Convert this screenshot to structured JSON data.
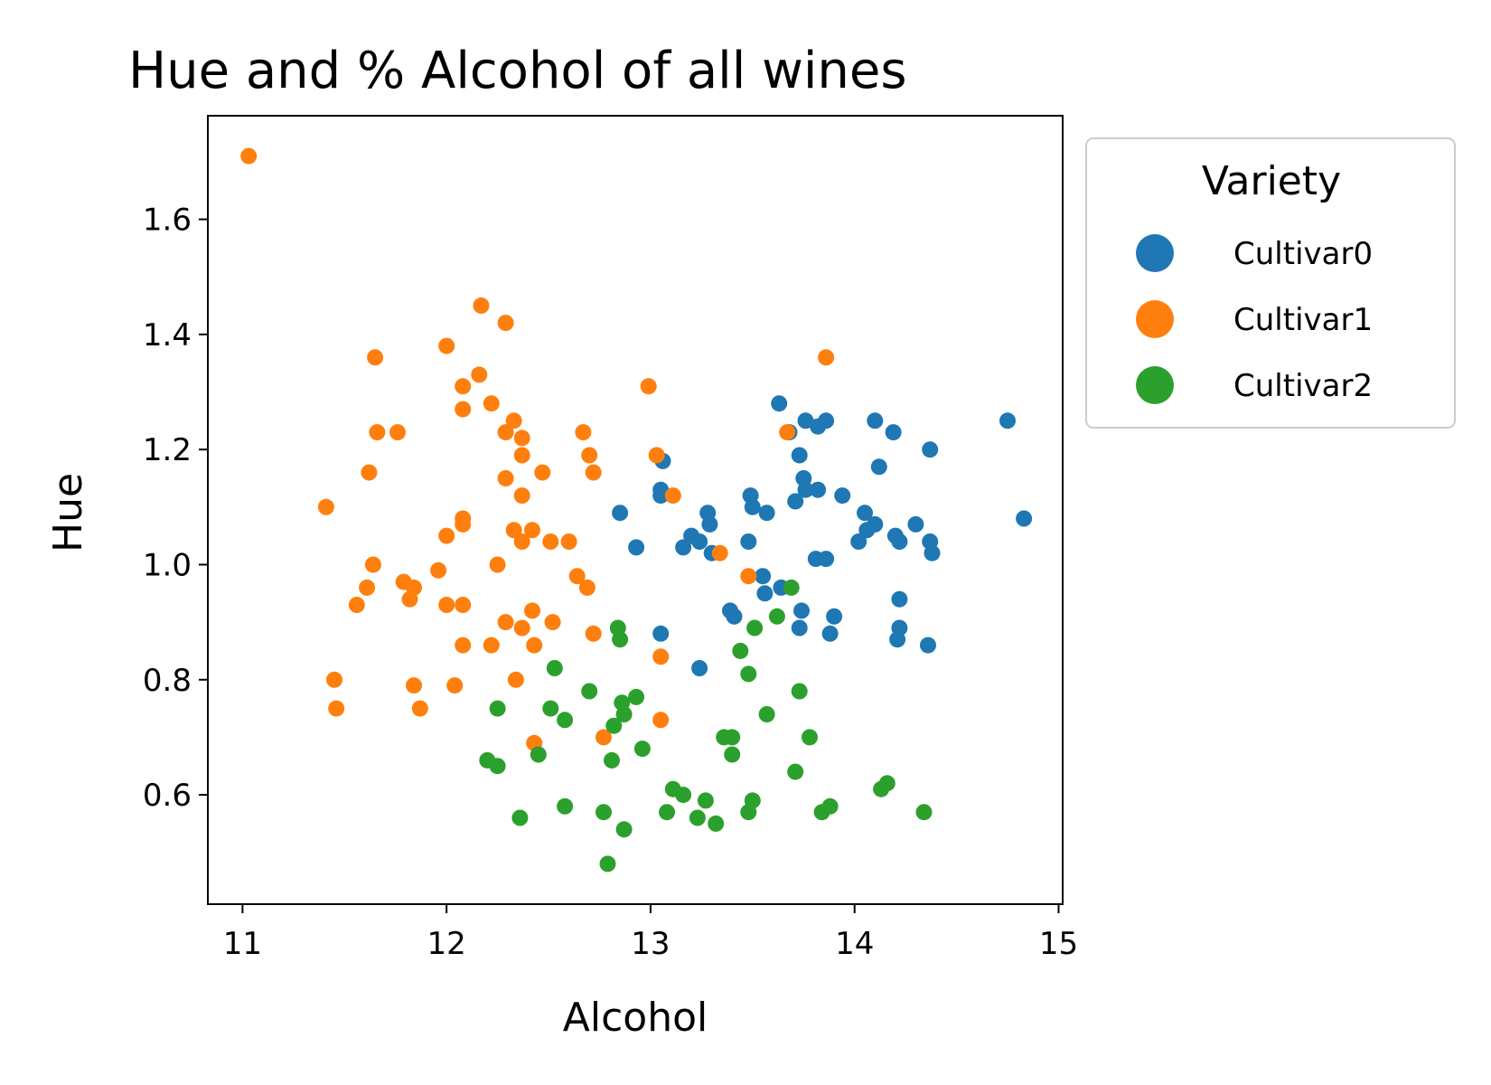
{
  "chart_data": {
    "type": "scatter",
    "title": "Hue and % Alcohol of all wines",
    "xlabel": "Alcohol",
    "ylabel": "Hue",
    "xlim": [
      10.83,
      15.02
    ],
    "ylim": [
      0.41,
      1.78
    ],
    "xticks": [
      11,
      12,
      13,
      14,
      15
    ],
    "yticks": [
      0.6,
      0.8,
      1.0,
      1.2,
      1.4,
      1.6
    ],
    "xtick_labels": [
      "11",
      "12",
      "13",
      "14",
      "15"
    ],
    "ytick_labels": [
      "0.6",
      "0.8",
      "1.0",
      "1.2",
      "1.4",
      "1.6"
    ],
    "grid": false,
    "legend": {
      "title": "Variety",
      "placement": "outside-right-top"
    },
    "series": [
      {
        "name": "Cultivar0",
        "color": "#1f77b4",
        "points": [
          [
            13.06,
            1.18
          ],
          [
            13.05,
            1.13
          ],
          [
            13.05,
            1.12
          ],
          [
            12.85,
            1.09
          ],
          [
            12.93,
            1.03
          ],
          [
            13.16,
            1.03
          ],
          [
            13.2,
            1.05
          ],
          [
            13.24,
            1.04
          ],
          [
            13.28,
            1.09
          ],
          [
            13.29,
            1.07
          ],
          [
            13.3,
            1.02
          ],
          [
            13.48,
            1.04
          ],
          [
            13.49,
            1.12
          ],
          [
            13.5,
            1.1
          ],
          [
            13.57,
            1.09
          ],
          [
            13.63,
            1.28
          ],
          [
            13.68,
            1.23
          ],
          [
            13.73,
            1.19
          ],
          [
            13.71,
            1.11
          ],
          [
            13.75,
            1.15
          ],
          [
            13.76,
            1.13
          ],
          [
            13.76,
            1.25
          ],
          [
            13.82,
            1.24
          ],
          [
            13.82,
            1.13
          ],
          [
            13.86,
            1.25
          ],
          [
            13.94,
            1.12
          ],
          [
            13.81,
            1.01
          ],
          [
            13.86,
            1.01
          ],
          [
            14.02,
            1.04
          ],
          [
            14.05,
            1.09
          ],
          [
            14.06,
            1.06
          ],
          [
            14.1,
            1.07
          ],
          [
            14.1,
            1.25
          ],
          [
            14.12,
            1.17
          ],
          [
            14.19,
            1.23
          ],
          [
            14.2,
            1.05
          ],
          [
            14.22,
            1.04
          ],
          [
            14.3,
            1.07
          ],
          [
            14.37,
            1.04
          ],
          [
            14.38,
            1.02
          ],
          [
            14.37,
            1.2
          ],
          [
            14.75,
            1.25
          ],
          [
            14.83,
            1.08
          ],
          [
            13.39,
            0.92
          ],
          [
            13.41,
            0.91
          ],
          [
            13.55,
            0.98
          ],
          [
            13.56,
            0.95
          ],
          [
            13.64,
            0.96
          ],
          [
            13.74,
            0.92
          ],
          [
            13.73,
            0.89
          ],
          [
            13.88,
            0.88
          ],
          [
            13.9,
            0.91
          ],
          [
            14.22,
            0.94
          ],
          [
            14.22,
            0.89
          ],
          [
            14.21,
            0.87
          ],
          [
            14.36,
            0.86
          ],
          [
            13.05,
            0.88
          ],
          [
            13.24,
            0.82
          ]
        ]
      },
      {
        "name": "Cultivar1",
        "color": "#ff7f0e",
        "points": [
          [
            11.03,
            1.71
          ],
          [
            12.17,
            1.45
          ],
          [
            12.29,
            1.42
          ],
          [
            11.65,
            1.36
          ],
          [
            12.0,
            1.38
          ],
          [
            12.16,
            1.33
          ],
          [
            12.08,
            1.31
          ],
          [
            12.08,
            1.27
          ],
          [
            12.22,
            1.28
          ],
          [
            12.99,
            1.31
          ],
          [
            13.86,
            1.36
          ],
          [
            11.66,
            1.23
          ],
          [
            11.76,
            1.23
          ],
          [
            12.29,
            1.23
          ],
          [
            12.33,
            1.25
          ],
          [
            12.37,
            1.22
          ],
          [
            12.37,
            1.19
          ],
          [
            11.62,
            1.16
          ],
          [
            12.29,
            1.15
          ],
          [
            12.47,
            1.16
          ],
          [
            12.67,
            1.23
          ],
          [
            12.7,
            1.19
          ],
          [
            12.72,
            1.16
          ],
          [
            13.03,
            1.19
          ],
          [
            13.67,
            1.23
          ],
          [
            11.41,
            1.1
          ],
          [
            12.37,
            1.12
          ],
          [
            13.11,
            1.12
          ],
          [
            12.08,
            1.08
          ],
          [
            12.08,
            1.07
          ],
          [
            12.0,
            1.05
          ],
          [
            12.33,
            1.06
          ],
          [
            12.42,
            1.06
          ],
          [
            12.37,
            1.04
          ],
          [
            12.51,
            1.04
          ],
          [
            12.6,
            1.04
          ],
          [
            13.34,
            1.02
          ],
          [
            11.64,
            1.0
          ],
          [
            12.25,
            1.0
          ],
          [
            11.96,
            0.99
          ],
          [
            12.64,
            0.98
          ],
          [
            12.69,
            0.96
          ],
          [
            11.61,
            0.96
          ],
          [
            11.79,
            0.97
          ],
          [
            11.84,
            0.96
          ],
          [
            11.82,
            0.94
          ],
          [
            11.56,
            0.93
          ],
          [
            12.0,
            0.93
          ],
          [
            12.08,
            0.93
          ],
          [
            12.42,
            0.92
          ],
          [
            12.29,
            0.9
          ],
          [
            12.37,
            0.89
          ],
          [
            12.52,
            0.9
          ],
          [
            12.72,
            0.88
          ],
          [
            13.48,
            0.98
          ],
          [
            12.08,
            0.86
          ],
          [
            12.22,
            0.86
          ],
          [
            12.43,
            0.86
          ],
          [
            13.05,
            0.84
          ],
          [
            12.34,
            0.8
          ],
          [
            11.45,
            0.8
          ],
          [
            11.84,
            0.79
          ],
          [
            12.04,
            0.79
          ],
          [
            11.46,
            0.75
          ],
          [
            11.87,
            0.75
          ],
          [
            13.05,
            0.73
          ],
          [
            12.43,
            0.69
          ],
          [
            12.77,
            0.7
          ]
        ]
      },
      {
        "name": "Cultivar2",
        "color": "#2ca02c",
        "points": [
          [
            13.69,
            0.96
          ],
          [
            13.62,
            0.91
          ],
          [
            12.84,
            0.89
          ],
          [
            12.85,
            0.87
          ],
          [
            13.51,
            0.89
          ],
          [
            13.44,
            0.85
          ],
          [
            12.53,
            0.82
          ],
          [
            13.48,
            0.81
          ],
          [
            12.7,
            0.78
          ],
          [
            13.73,
            0.78
          ],
          [
            12.93,
            0.77
          ],
          [
            12.86,
            0.76
          ],
          [
            12.87,
            0.74
          ],
          [
            12.51,
            0.75
          ],
          [
            12.25,
            0.75
          ],
          [
            12.58,
            0.73
          ],
          [
            13.57,
            0.74
          ],
          [
            12.82,
            0.72
          ],
          [
            13.36,
            0.7
          ],
          [
            13.4,
            0.7
          ],
          [
            13.78,
            0.7
          ],
          [
            12.96,
            0.68
          ],
          [
            12.45,
            0.67
          ],
          [
            13.4,
            0.67
          ],
          [
            12.2,
            0.66
          ],
          [
            12.81,
            0.66
          ],
          [
            12.25,
            0.65
          ],
          [
            13.71,
            0.64
          ],
          [
            13.11,
            0.61
          ],
          [
            13.16,
            0.6
          ],
          [
            13.27,
            0.59
          ],
          [
            13.5,
            0.59
          ],
          [
            14.13,
            0.61
          ],
          [
            14.16,
            0.62
          ],
          [
            12.58,
            0.58
          ],
          [
            13.08,
            0.57
          ],
          [
            13.48,
            0.57
          ],
          [
            13.84,
            0.57
          ],
          [
            13.88,
            0.58
          ],
          [
            14.34,
            0.57
          ],
          [
            12.77,
            0.57
          ],
          [
            13.23,
            0.56
          ],
          [
            12.36,
            0.56
          ],
          [
            13.32,
            0.55
          ],
          [
            12.87,
            0.54
          ],
          [
            12.79,
            0.48
          ]
        ]
      }
    ]
  }
}
